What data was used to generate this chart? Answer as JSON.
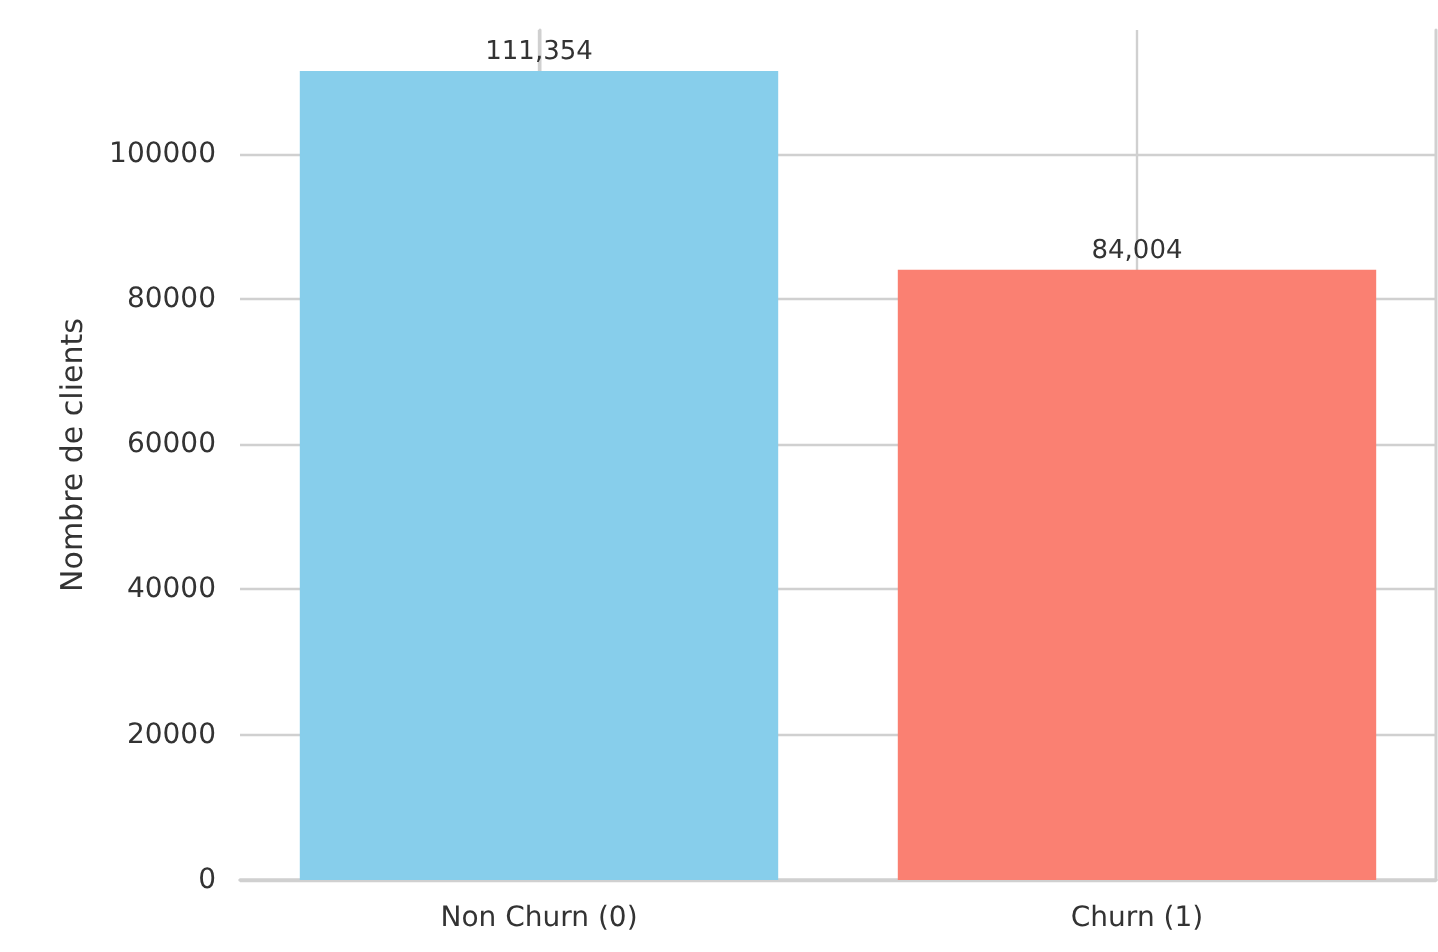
{
  "chart_data": {
    "type": "bar",
    "ylabel": "Nombre de clients",
    "categories": [
      "Non Churn (0)",
      "Churn (1)"
    ],
    "values": [
      111354,
      84004
    ],
    "colors": [
      "#87ceeb",
      "#fa8072"
    ],
    "value_labels": [
      "111,354",
      "84,004"
    ],
    "ylim": [
      0,
      117000
    ],
    "yticks": [
      0,
      20000,
      40000,
      60000,
      80000,
      100000
    ],
    "grid": true
  }
}
